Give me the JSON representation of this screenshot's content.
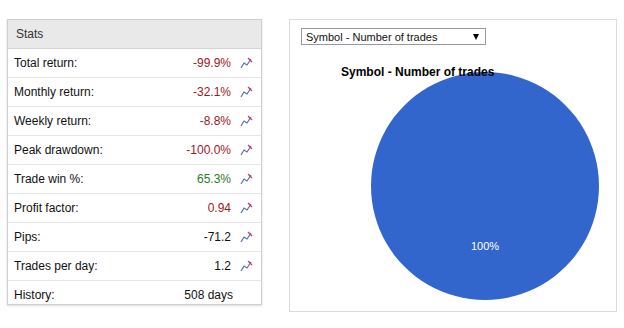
{
  "stats": {
    "title": "Stats",
    "rows": [
      {
        "label": "Total return:",
        "value": "-99.9%",
        "color": "#a0171b"
      },
      {
        "label": "Monthly return:",
        "value": "-32.1%",
        "color": "#a0171b"
      },
      {
        "label": "Weekly return:",
        "value": "-8.8%",
        "color": "#a0171b"
      },
      {
        "label": "Peak drawdown:",
        "value": "-100.0%",
        "color": "#a0171b"
      },
      {
        "label": "Trade win %:",
        "value": "65.3%",
        "color": "#2a7a1f"
      },
      {
        "label": "Profit factor:",
        "value": "0.94",
        "color": "#a0171b"
      },
      {
        "label": "Pips:",
        "value": "-71.2",
        "color": "#111111"
      },
      {
        "label": "Trades per day:",
        "value": "1.2",
        "color": "#111111"
      },
      {
        "label": "History:",
        "value": "508 days",
        "color": "#111111"
      }
    ]
  },
  "dropdown": "Symbol - Number of trades",
  "chart_data": {
    "type": "pie",
    "title": "Symbol - Number of trades",
    "values": [
      100
    ],
    "value_labels": [
      "100%"
    ],
    "color": "#3366cc",
    "data_labels": true
  }
}
